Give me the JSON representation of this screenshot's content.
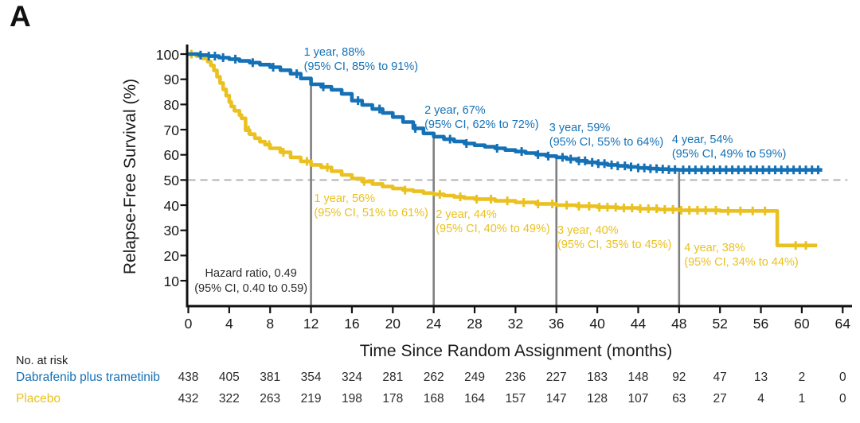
{
  "panel_label": "A",
  "colors": {
    "treatment": "#1471b6",
    "placebo": "#eac120",
    "axis": "#111111",
    "milestone_line": "#7f7f7f",
    "reference_line": "#b3b3b3",
    "neutral_text": "#2b2b2b"
  },
  "chart_data": {
    "type": "line",
    "subtype": "kaplan-meier-step",
    "title": "",
    "xlabel": "Time Since Random Assignment (months)",
    "ylabel": "Relapse-Free Survival (%)",
    "xlim": [
      0,
      64
    ],
    "ylim": [
      0,
      100
    ],
    "xticks": [
      0,
      4,
      8,
      12,
      16,
      20,
      24,
      28,
      32,
      36,
      40,
      44,
      48,
      52,
      56,
      60,
      64
    ],
    "yticks": [
      10,
      20,
      30,
      40,
      50,
      60,
      70,
      80,
      90,
      100
    ],
    "grid": false,
    "legend_position": "none",
    "reference_line_y": 50,
    "milestone_lines_x": [
      12,
      24,
      36,
      48
    ],
    "series": [
      {
        "name": "Dabrafenib plus trametinib",
        "color_key": "treatment",
        "points": [
          [
            0,
            100
          ],
          [
            1,
            99.6
          ],
          [
            2,
            99.2
          ],
          [
            3,
            98.6
          ],
          [
            4,
            98
          ],
          [
            5,
            97.3
          ],
          [
            6,
            96.6
          ],
          [
            7,
            95.8
          ],
          [
            8,
            94.8
          ],
          [
            9,
            93.6
          ],
          [
            10,
            92.2
          ],
          [
            11,
            90.3
          ],
          [
            12,
            88
          ],
          [
            13,
            87
          ],
          [
            14,
            85.8
          ],
          [
            15,
            84.2
          ],
          [
            16,
            81.5
          ],
          [
            17,
            79.8
          ],
          [
            18,
            78.2
          ],
          [
            19,
            76.6
          ],
          [
            20,
            75
          ],
          [
            21,
            73
          ],
          [
            22,
            70.5
          ],
          [
            23,
            68.5
          ],
          [
            24,
            67.2
          ],
          [
            25,
            66.2
          ],
          [
            26,
            65.3
          ],
          [
            27,
            64.5
          ],
          [
            28,
            63.8
          ],
          [
            29,
            63.2
          ],
          [
            30,
            62.6
          ],
          [
            31,
            61.9
          ],
          [
            32,
            61.3
          ],
          [
            33,
            60.7
          ],
          [
            34,
            60.1
          ],
          [
            35,
            59.5
          ],
          [
            36,
            59
          ],
          [
            37,
            58.3
          ],
          [
            38,
            57.6
          ],
          [
            39,
            57
          ],
          [
            40,
            56.5
          ],
          [
            41,
            56
          ],
          [
            42,
            55.6
          ],
          [
            43,
            55.2
          ],
          [
            44,
            54.8
          ],
          [
            45,
            54.5
          ],
          [
            46,
            54.3
          ],
          [
            47,
            54.1
          ],
          [
            48,
            54
          ],
          [
            62,
            54
          ]
        ],
        "censors": [
          1.2,
          2.0,
          2.6,
          3.4,
          4.6,
          6.3,
          8.3,
          10.6,
          13.2,
          16.6,
          18.7,
          22.2,
          25.6,
          27.2,
          30.2,
          32.6,
          34.2,
          35.2,
          36.6,
          37.4,
          38.2,
          38.8,
          39.5,
          40.1,
          40.7,
          41.4,
          42.0,
          42.7,
          43.3,
          44.0,
          44.6,
          45.2,
          45.8,
          46.4,
          47.0,
          47.6,
          48.4,
          49.0,
          49.6,
          50.2,
          50.8,
          51.4,
          52.0,
          52.6,
          53.2,
          53.8,
          54.4,
          55.0,
          55.6,
          56.2,
          56.8,
          57.4,
          58.0,
          58.6,
          59.2,
          59.8,
          60.4,
          61.0,
          61.6
        ]
      },
      {
        "name": "Placebo",
        "color_key": "placebo",
        "points": [
          [
            0,
            100
          ],
          [
            0.8,
            99.2
          ],
          [
            1.4,
            98.3
          ],
          [
            1.9,
            97
          ],
          [
            2.2,
            95.5
          ],
          [
            2.5,
            93.5
          ],
          [
            2.8,
            91
          ],
          [
            3.1,
            88.5
          ],
          [
            3.4,
            86
          ],
          [
            3.7,
            83.5
          ],
          [
            4,
            81
          ],
          [
            4.2,
            79.2
          ],
          [
            4.5,
            77.5
          ],
          [
            5,
            75.8
          ],
          [
            5.2,
            74.5
          ],
          [
            5.6,
            69.8
          ],
          [
            6,
            68.2
          ],
          [
            6.5,
            66.6
          ],
          [
            7,
            65.2
          ],
          [
            7.5,
            64
          ],
          [
            8,
            62.6
          ],
          [
            9,
            61
          ],
          [
            10,
            59
          ],
          [
            11,
            57.4
          ],
          [
            12,
            56
          ],
          [
            13,
            55
          ],
          [
            14,
            53.5
          ],
          [
            15,
            52
          ],
          [
            16,
            50.6
          ],
          [
            17,
            49.4
          ],
          [
            18,
            48.4
          ],
          [
            19,
            47.4
          ],
          [
            20,
            46.6
          ],
          [
            21,
            46
          ],
          [
            22,
            45.5
          ],
          [
            23,
            44.8
          ],
          [
            24,
            44.3
          ],
          [
            25,
            43.8
          ],
          [
            26,
            43.3
          ],
          [
            27,
            42.8
          ],
          [
            28,
            42.4
          ],
          [
            30,
            41.7
          ],
          [
            32,
            41.1
          ],
          [
            34,
            40.5
          ],
          [
            36,
            40
          ],
          [
            38,
            39.6
          ],
          [
            40,
            39.2
          ],
          [
            42,
            38.9
          ],
          [
            44,
            38.6
          ],
          [
            46,
            38.3
          ],
          [
            48,
            38
          ],
          [
            52,
            37.7
          ],
          [
            57.6,
            37.5
          ],
          [
            57.6,
            24
          ],
          [
            61.5,
            24
          ]
        ],
        "censors": [
          0.3,
          5.9,
          7.9,
          9.3,
          11.6,
          13.6,
          17.2,
          21.2,
          24.6,
          26.6,
          28.2,
          29.6,
          31.2,
          32.8,
          34.2,
          35.6,
          37.0,
          38.2,
          39.2,
          40.2,
          41.0,
          41.8,
          42.6,
          43.4,
          44.2,
          45.0,
          45.8,
          46.6,
          47.4,
          48.2,
          49.0,
          49.8,
          50.6,
          51.6,
          52.8,
          54.0,
          55.2,
          56.4,
          59.4,
          60.4
        ]
      }
    ],
    "annotations": [
      {
        "series": "treatment",
        "align": "left",
        "x": 11.3,
        "y": 103.5,
        "lines": [
          "1 year, 88%",
          "(95% CI, 85% to 91%)"
        ]
      },
      {
        "series": "treatment",
        "align": "left",
        "x": 23.1,
        "y": 80.5,
        "lines": [
          "2 year, 67%",
          "(95% CI, 62% to 72%)"
        ]
      },
      {
        "series": "treatment",
        "align": "left",
        "x": 35.3,
        "y": 73.5,
        "lines": [
          "3 year, 59%",
          "(95% CI, 55% to 64%)"
        ]
      },
      {
        "series": "treatment",
        "align": "left",
        "x": 47.3,
        "y": 68.8,
        "lines": [
          "4 year, 54%",
          "(95% CI, 49% to 59%)"
        ]
      },
      {
        "series": "placebo",
        "align": "left",
        "x": 12.3,
        "y": 45.4,
        "lines": [
          "1 year, 56%",
          "(95% CI, 51% to 61%)"
        ]
      },
      {
        "series": "placebo",
        "align": "left",
        "x": 24.2,
        "y": 39.2,
        "lines": [
          "2 year, 44%",
          "(95% CI, 40% to 49%)"
        ]
      },
      {
        "series": "placebo",
        "align": "left",
        "x": 36.1,
        "y": 32.8,
        "lines": [
          "3 year, 40%",
          "(95% CI, 35% to 45%)"
        ]
      },
      {
        "series": "placebo",
        "align": "left",
        "x": 48.5,
        "y": 25.8,
        "lines": [
          "4 year, 38%",
          "(95% CI, 34% to 44%)"
        ]
      },
      {
        "series": "neutral",
        "align": "center",
        "x": 0.6,
        "y": 15.6,
        "lines": [
          "Hazard ratio, 0.49",
          "(95% CI, 0.40 to 0.59)"
        ]
      }
    ]
  },
  "risk_table": {
    "header": "No. at risk",
    "times": [
      0,
      4,
      8,
      12,
      16,
      20,
      24,
      28,
      32,
      36,
      40,
      44,
      48,
      52,
      56,
      60,
      64
    ],
    "rows": [
      {
        "label": "Dabrafenib plus trametinib",
        "color_key": "treatment",
        "values": [
          438,
          405,
          381,
          354,
          324,
          281,
          262,
          249,
          236,
          227,
          183,
          148,
          92,
          47,
          13,
          2,
          0
        ]
      },
      {
        "label": "Placebo",
        "color_key": "placebo",
        "values": [
          432,
          322,
          263,
          219,
          198,
          178,
          168,
          164,
          157,
          147,
          128,
          107,
          63,
          27,
          4,
          1,
          0
        ]
      }
    ]
  }
}
